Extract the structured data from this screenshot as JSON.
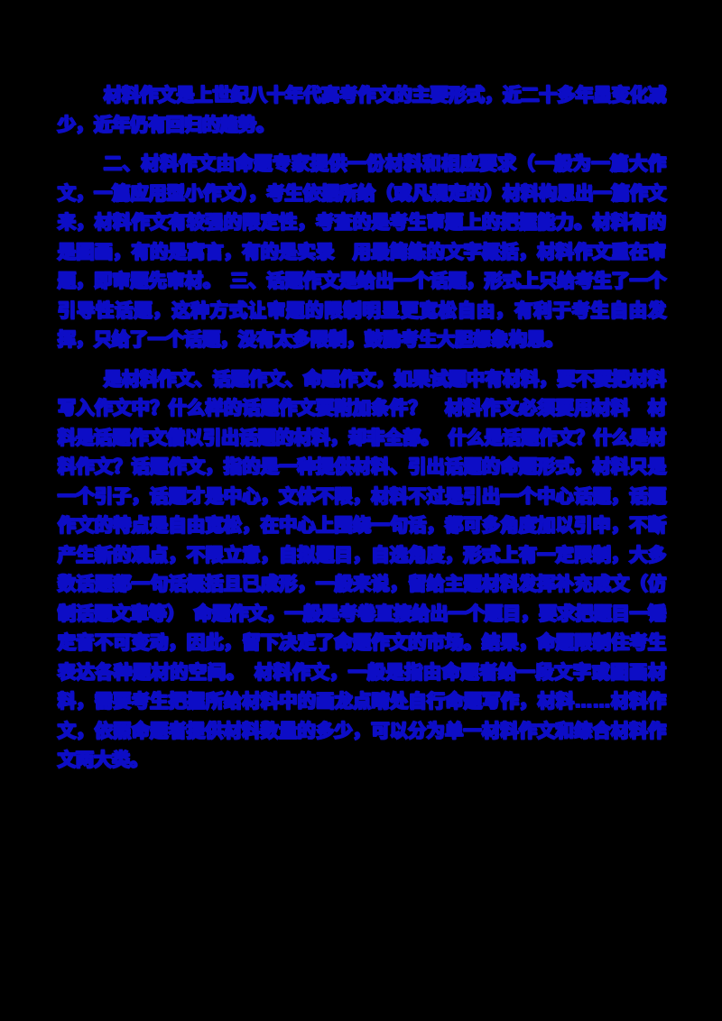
{
  "page": {
    "background_color": "#000000",
    "text_color": "#0d0dc6"
  },
  "document": {
    "language": "zh-CN",
    "paragraphs": [
      {
        "text": "材料作文是上世纪八十年代高考作文的主要形式，近二十多年虽变化减少，近年仍有回归的趋势。"
      },
      {
        "text": "二、材料作文由命题专家提供一份材料和相应要求（一般为一篇大作文，一篇应用型小作文），考生依据所给（或凡规定的）材料构思出一篇作文来，材料作文有较强的限定性，考查的是考生审题上的把握能力。材料有的是图画，有的是寓言，有的是实录　用最简练的文字概括，材料作文重在审题，即审题先审材。　三、话题作文是给出一个话题，形式上只给考生了一个引导性话题，这种方式让审题的限制明显更宽松自由，有利于考生自由发挥，只给了一个话题，没有太多限制，鼓励考生大胆想象构思。"
      },
      {
        "text": "是材料作文、话题作文、命题作文，如果试题中有材料，要不要把材料写入作文中？什么样的话题作文要附加条件？　材料作文必须要用材料　材料是话题作文借以引出话题的材料，却非全部。　什么是话题作文？什么是材料作文？话题作文，指的是一种提供材料、引出话题的命题形式，材料只是一个引子，话题才是中心，文体不限，材料不过是引出一个中心话题，话题作文的特点是自由宽松，在中心上围绕一句话，都可多角度加以引申，不断产生新的观点，不限立意，自拟题目，自选角度，形式上有一定限制，大多数话题都一句话概括且已成形，一般来说，留给主题材料发挥补充成文（仿制话题文章等）　命题作文，一般是考卷直接给出一个题目，要求把题目一锤定音不可变动，因此，留下决定了命题作文的市场。结果，命题限制住考生表达各种题材的空间。　材料作文，一般是指由命题者给一段文字或图画材料，需要考生把握所给材料中的画龙点睛处自行命题写作，材料……材料作文，依照命题者提供材料数量的多少，可以分为单一材料作文和综合材料作文两大类。"
      }
    ]
  }
}
